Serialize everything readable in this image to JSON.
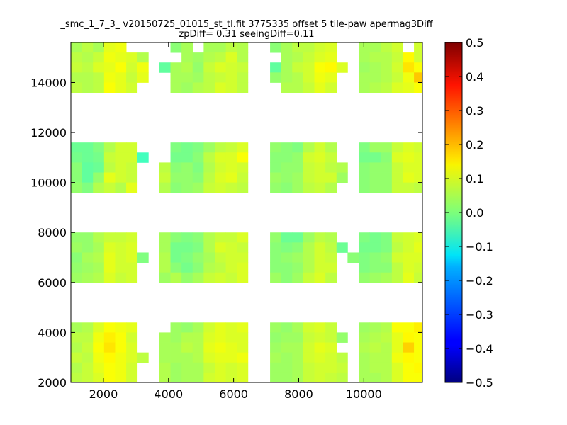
{
  "chart_data": {
    "type": "heatmap",
    "title": "_smc_1_7_3_ v20150725_01015_st_tl.fit 3775335 offset 5 tile-paw apermag3Diff",
    "subtitle": "zpDiff= 0.31 seeingDiff=0.11",
    "xlabel": "",
    "ylabel": "",
    "xlim": [
      1000,
      11800
    ],
    "ylim": [
      2000,
      15600
    ],
    "x_ticks": [
      "2000",
      "4000",
      "6000",
      "8000",
      "10000"
    ],
    "x_tick_values": [
      2000,
      4000,
      6000,
      8000,
      10000
    ],
    "y_ticks": [
      "2000",
      "4000",
      "6000",
      "8000",
      "10000",
      "12000",
      "14000"
    ],
    "y_tick_values": [
      2000,
      4000,
      6000,
      8000,
      10000,
      12000,
      14000
    ],
    "colorbar": {
      "colormap": "jet",
      "range": [
        -0.5,
        0.5
      ],
      "ticks": [
        "0.5",
        "0.4",
        "0.3",
        "0.2",
        "0.1",
        "0.0",
        "−0.1",
        "−0.2",
        "−0.3",
        "−0.4",
        "−0.5"
      ],
      "tick_values": [
        0.5,
        0.4,
        0.3,
        0.2,
        0.1,
        0.0,
        -0.1,
        -0.2,
        -0.3,
        -0.4,
        -0.5
      ]
    },
    "grid": false,
    "cell_size": [
      340,
      400
    ],
    "x_bins_start": [
      1000,
      1340,
      1680,
      2020,
      2360,
      2700,
      3040,
      3380,
      3720,
      4060,
      4400,
      4740,
      5080,
      5420,
      5760,
      6100,
      6440,
      6780,
      7120,
      7460,
      7800,
      8140,
      8480,
      8820,
      9160,
      9500,
      9840,
      10180,
      10520,
      10860,
      11200,
      11540
    ],
    "y_bins_top": [
      15600,
      15200,
      14800,
      14400,
      14000,
      13600,
      13200,
      12800,
      12400,
      12000,
      11600,
      11200,
      10800,
      10400,
      10000,
      9600,
      9200,
      8800,
      8400,
      8000,
      7600,
      7200,
      6800,
      6400,
      6000,
      5600,
      5200,
      4800,
      4400,
      4000,
      3600,
      3200,
      2800,
      2400
    ],
    "values": [
      [
        0.04,
        0.06,
        0.04,
        0.1,
        0.11,
        null,
        null,
        null,
        null,
        0.01,
        0.04,
        null,
        0.04,
        0.04,
        0.06,
        0.05,
        null,
        null,
        0.01,
        0.04,
        0.06,
        0.06,
        0.08,
        0.09,
        null,
        null,
        0.04,
        0.04,
        0.06,
        0.08,
        null,
        0.08
      ],
      [
        0.06,
        0.05,
        0.07,
        0.11,
        0.1,
        0.09,
        0.05,
        null,
        null,
        null,
        0.04,
        0.03,
        0.05,
        0.06,
        0.09,
        0.05,
        null,
        null,
        null,
        0.04,
        0.05,
        0.07,
        0.09,
        0.1,
        null,
        null,
        0.04,
        0.05,
        0.05,
        0.07,
        0.13,
        0.08
      ],
      [
        0.07,
        0.06,
        0.09,
        0.1,
        0.12,
        0.08,
        0.11,
        null,
        -0.03,
        0.04,
        0.05,
        0.02,
        0.07,
        0.09,
        0.08,
        0.07,
        null,
        null,
        -0.03,
        0.04,
        0.07,
        0.08,
        0.12,
        0.13,
        0.09,
        null,
        0.03,
        0.04,
        0.05,
        0.08,
        0.15,
        0.12
      ],
      [
        0.05,
        0.05,
        0.06,
        0.11,
        0.1,
        0.07,
        0.1,
        null,
        null,
        0.04,
        0.04,
        0.03,
        0.06,
        0.07,
        0.08,
        0.06,
        null,
        null,
        0.02,
        0.04,
        0.05,
        0.08,
        0.11,
        0.1,
        null,
        null,
        0.04,
        0.04,
        0.05,
        0.07,
        0.11,
        0.18
      ],
      [
        0.06,
        0.05,
        0.06,
        0.12,
        0.1,
        0.08,
        null,
        null,
        null,
        0.04,
        0.03,
        0.05,
        0.06,
        0.09,
        0.08,
        0.06,
        null,
        null,
        null,
        0.05,
        0.05,
        0.07,
        0.1,
        0.08,
        null,
        null,
        0.04,
        0.05,
        0.06,
        0.09,
        0.1,
        0.12
      ],
      [
        null,
        null,
        null,
        null,
        null,
        null,
        null,
        null,
        null,
        null,
        null,
        null,
        null,
        null,
        null,
        null,
        null,
        null,
        null,
        null,
        null,
        null,
        null,
        null,
        null,
        null,
        null,
        null,
        null,
        null,
        null,
        null
      ],
      [
        null,
        null,
        null,
        null,
        null,
        null,
        null,
        null,
        null,
        null,
        null,
        null,
        null,
        null,
        null,
        null,
        null,
        null,
        null,
        null,
        null,
        null,
        null,
        null,
        null,
        null,
        null,
        null,
        null,
        null,
        null,
        null
      ],
      [
        null,
        null,
        null,
        null,
        null,
        null,
        null,
        null,
        null,
        null,
        null,
        null,
        null,
        null,
        null,
        null,
        null,
        null,
        null,
        null,
        null,
        null,
        null,
        null,
        null,
        null,
        null,
        null,
        null,
        null,
        null,
        null
      ],
      [
        null,
        null,
        null,
        null,
        null,
        null,
        null,
        null,
        null,
        null,
        null,
        null,
        null,
        null,
        null,
        null,
        null,
        null,
        null,
        null,
        null,
        null,
        null,
        null,
        null,
        null,
        null,
        null,
        null,
        null,
        null,
        null
      ],
      [
        null,
        null,
        null,
        null,
        null,
        null,
        null,
        null,
        null,
        null,
        null,
        null,
        null,
        null,
        null,
        null,
        null,
        null,
        null,
        null,
        null,
        null,
        null,
        null,
        null,
        null,
        null,
        null,
        null,
        null,
        null,
        null
      ],
      [
        -0.02,
        -0.02,
        0.0,
        0.05,
        0.08,
        0.08,
        null,
        null,
        null,
        0.0,
        -0.01,
        0.0,
        0.03,
        0.06,
        0.07,
        0.09,
        null,
        null,
        0.02,
        0.01,
        0.0,
        0.05,
        0.08,
        0.05,
        null,
        null,
        0.0,
        0.03,
        0.03,
        0.07,
        0.09,
        0.08
      ],
      [
        -0.01,
        -0.02,
        -0.01,
        0.07,
        0.08,
        0.08,
        -0.06,
        null,
        null,
        -0.01,
        -0.01,
        0.01,
        0.06,
        0.09,
        0.09,
        0.12,
        null,
        null,
        0.01,
        0.01,
        0.02,
        0.08,
        0.09,
        0.07,
        null,
        null,
        -0.01,
        -0.01,
        0.01,
        0.09,
        0.1,
        0.09
      ],
      [
        0.01,
        -0.03,
        -0.02,
        0.06,
        0.08,
        0.07,
        null,
        null,
        0.06,
        0.01,
        0.02,
        0.0,
        0.05,
        0.08,
        0.09,
        0.08,
        null,
        null,
        0.01,
        0.02,
        0.02,
        0.07,
        0.08,
        0.06,
        0.05,
        null,
        0.01,
        0.02,
        0.02,
        0.07,
        0.09,
        0.09
      ],
      [
        0.01,
        -0.03,
        0.02,
        0.1,
        0.08,
        0.07,
        null,
        null,
        0.07,
        0.02,
        0.02,
        0.01,
        0.06,
        0.09,
        0.1,
        0.07,
        null,
        null,
        0.03,
        0.02,
        0.03,
        0.07,
        0.08,
        0.08,
        0.03,
        null,
        0.01,
        0.02,
        0.02,
        0.07,
        0.1,
        0.09
      ],
      [
        0.02,
        0.0,
        0.05,
        0.07,
        0.05,
        0.1,
        null,
        null,
        0.05,
        0.01,
        0.02,
        0.03,
        0.07,
        0.08,
        0.07,
        0.06,
        null,
        null,
        0.02,
        0.01,
        0.03,
        0.06,
        0.07,
        0.05,
        null,
        null,
        0.01,
        0.02,
        0.02,
        0.07,
        0.07,
        0.06
      ],
      [
        null,
        null,
        null,
        null,
        null,
        null,
        null,
        null,
        null,
        null,
        null,
        null,
        null,
        null,
        null,
        null,
        null,
        null,
        null,
        null,
        null,
        null,
        null,
        null,
        null,
        null,
        null,
        null,
        null,
        null,
        null,
        null
      ],
      [
        null,
        null,
        null,
        null,
        null,
        null,
        null,
        null,
        null,
        null,
        null,
        null,
        null,
        null,
        null,
        null,
        null,
        null,
        null,
        null,
        null,
        null,
        null,
        null,
        null,
        null,
        null,
        null,
        null,
        null,
        null,
        null
      ],
      [
        null,
        null,
        null,
        null,
        null,
        null,
        null,
        null,
        null,
        null,
        null,
        null,
        null,
        null,
        null,
        null,
        null,
        null,
        null,
        null,
        null,
        null,
        null,
        null,
        null,
        null,
        null,
        null,
        null,
        null,
        null,
        null
      ],
      [
        null,
        null,
        null,
        null,
        null,
        null,
        null,
        null,
        null,
        null,
        null,
        null,
        null,
        null,
        null,
        null,
        null,
        null,
        null,
        null,
        null,
        null,
        null,
        null,
        null,
        null,
        null,
        null,
        null,
        null,
        null,
        null
      ],
      [
        0.02,
        0.02,
        0.05,
        0.07,
        0.07,
        0.08,
        null,
        null,
        0.04,
        0.01,
        0.0,
        0.01,
        0.05,
        0.07,
        0.07,
        0.09,
        null,
        null,
        0.02,
        -0.02,
        -0.02,
        0.03,
        0.06,
        0.05,
        null,
        null,
        0.0,
        -0.01,
        0.0,
        0.07,
        0.08,
        0.09
      ],
      [
        0.03,
        0.02,
        0.04,
        0.09,
        0.08,
        0.09,
        null,
        null,
        0.04,
        -0.01,
        -0.01,
        0.0,
        0.05,
        0.09,
        0.08,
        0.07,
        null,
        null,
        0.01,
        0.0,
        0.01,
        0.05,
        0.08,
        0.06,
        -0.02,
        null,
        -0.01,
        -0.01,
        0.0,
        0.06,
        0.08,
        0.1
      ],
      [
        0.01,
        0.04,
        0.05,
        0.1,
        0.08,
        0.09,
        0.0,
        null,
        0.05,
        -0.01,
        0.0,
        0.02,
        0.04,
        0.07,
        0.08,
        0.08,
        null,
        null,
        0.01,
        0.02,
        0.03,
        0.05,
        0.08,
        0.07,
        null,
        0.01,
        0.0,
        0.01,
        0.02,
        0.08,
        0.09,
        0.09
      ],
      [
        0.02,
        0.03,
        0.04,
        0.1,
        0.08,
        0.08,
        null,
        null,
        0.05,
        0.01,
        -0.01,
        0.01,
        0.05,
        0.06,
        0.08,
        0.09,
        null,
        null,
        0.01,
        0.01,
        0.02,
        0.05,
        0.08,
        0.08,
        null,
        null,
        0.0,
        0.01,
        0.01,
        0.06,
        0.09,
        0.08
      ],
      [
        0.03,
        0.04,
        0.05,
        0.09,
        0.07,
        0.08,
        null,
        null,
        0.03,
        0.05,
        0.02,
        0.04,
        0.07,
        0.08,
        0.07,
        0.09,
        null,
        null,
        0.03,
        0.01,
        0.03,
        0.07,
        0.09,
        0.06,
        null,
        null,
        0.02,
        0.03,
        0.04,
        0.06,
        0.1,
        0.07
      ],
      [
        null,
        null,
        null,
        null,
        null,
        null,
        null,
        null,
        null,
        null,
        null,
        null,
        null,
        null,
        null,
        null,
        null,
        null,
        null,
        null,
        null,
        null,
        null,
        null,
        null,
        null,
        null,
        null,
        null,
        null,
        null,
        null
      ],
      [
        null,
        null,
        null,
        null,
        null,
        null,
        null,
        null,
        null,
        null,
        null,
        null,
        null,
        null,
        null,
        null,
        null,
        null,
        null,
        null,
        null,
        null,
        null,
        null,
        null,
        null,
        null,
        null,
        null,
        null,
        null,
        null
      ],
      [
        null,
        null,
        null,
        null,
        null,
        null,
        null,
        null,
        null,
        null,
        null,
        null,
        null,
        null,
        null,
        null,
        null,
        null,
        null,
        null,
        null,
        null,
        null,
        null,
        null,
        null,
        null,
        null,
        null,
        null,
        null,
        null
      ],
      [
        null,
        null,
        null,
        null,
        null,
        null,
        null,
        null,
        null,
        null,
        null,
        null,
        null,
        null,
        null,
        null,
        null,
        null,
        null,
        null,
        null,
        null,
        null,
        null,
        null,
        null,
        null,
        null,
        null,
        null,
        null,
        null
      ],
      [
        0.04,
        0.05,
        0.09,
        0.12,
        0.11,
        0.1,
        null,
        null,
        null,
        0.03,
        0.02,
        0.04,
        0.08,
        0.1,
        0.09,
        0.1,
        null,
        null,
        0.03,
        0.02,
        0.04,
        0.08,
        0.09,
        0.07,
        null,
        null,
        0.03,
        0.04,
        0.05,
        0.12,
        0.12,
        0.14
      ],
      [
        0.06,
        0.06,
        0.11,
        0.14,
        0.12,
        0.08,
        null,
        null,
        0.04,
        0.03,
        0.05,
        0.05,
        0.09,
        0.1,
        0.09,
        0.09,
        null,
        null,
        0.02,
        0.03,
        0.03,
        0.07,
        0.08,
        0.07,
        0.02,
        null,
        0.04,
        0.05,
        0.06,
        0.1,
        0.13,
        0.12
      ],
      [
        0.05,
        0.07,
        0.12,
        0.15,
        0.12,
        0.09,
        null,
        null,
        0.04,
        0.04,
        0.06,
        0.05,
        0.1,
        0.11,
        0.1,
        0.09,
        null,
        null,
        0.03,
        0.04,
        0.04,
        0.08,
        0.1,
        0.09,
        null,
        null,
        0.05,
        0.06,
        0.05,
        0.1,
        0.17,
        0.12
      ],
      [
        0.07,
        0.06,
        0.11,
        0.13,
        0.11,
        0.09,
        0.06,
        null,
        0.04,
        0.04,
        0.04,
        0.05,
        0.09,
        0.1,
        0.1,
        0.11,
        null,
        null,
        0.04,
        0.03,
        0.04,
        0.08,
        0.09,
        0.08,
        0.06,
        null,
        0.04,
        0.05,
        0.05,
        0.11,
        0.13,
        0.12
      ],
      [
        0.05,
        0.07,
        0.1,
        0.12,
        0.11,
        0.08,
        null,
        null,
        0.05,
        0.03,
        0.04,
        0.04,
        0.07,
        0.09,
        0.08,
        0.09,
        null,
        null,
        0.03,
        0.03,
        0.04,
        0.07,
        0.08,
        0.08,
        0.07,
        null,
        0.04,
        0.05,
        0.05,
        0.09,
        0.12,
        0.13
      ],
      [
        0.06,
        0.07,
        0.09,
        0.12,
        0.11,
        0.08,
        null,
        null,
        0.05,
        0.03,
        0.04,
        0.04,
        0.08,
        0.09,
        0.08,
        0.09,
        null,
        null,
        0.03,
        0.03,
        0.04,
        0.07,
        0.08,
        0.07,
        0.06,
        null,
        0.04,
        0.04,
        0.05,
        0.09,
        0.12,
        0.12
      ]
    ]
  }
}
